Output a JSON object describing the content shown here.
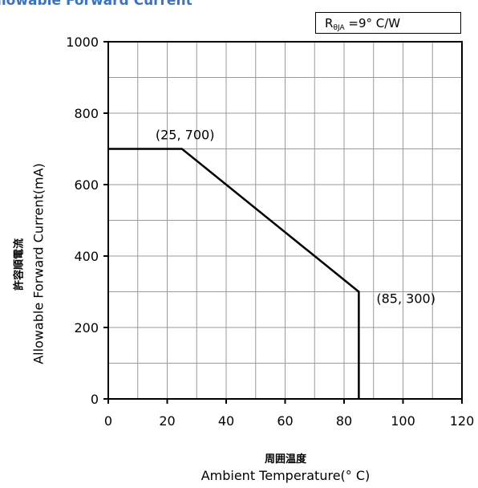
{
  "chart_data": {
    "type": "line",
    "title": "llowable Forward Current",
    "annotation_box": {
      "prefix": "R",
      "subscript": "θJA",
      "suffix": " =9° C/W"
    },
    "ylabel_jp": "許容順電流",
    "ylabel": "Allowable Forward Current(mA)",
    "xlabel_jp": "周囲温度",
    "xlabel": "Ambient Temperature(° C)",
    "xlim": [
      0,
      120
    ],
    "ylim": [
      0,
      1000
    ],
    "xticks": [
      0,
      20,
      40,
      60,
      80,
      100,
      120
    ],
    "yticks": [
      0,
      200,
      400,
      600,
      800,
      1000
    ],
    "grid": true,
    "series": [
      {
        "x": [
          0,
          25,
          85,
          85
        ],
        "y": [
          700,
          700,
          300,
          0
        ]
      }
    ],
    "annotations": [
      {
        "text": "(25, 700)",
        "x": 25,
        "y": 700
      },
      {
        "text": "(85, 300)",
        "x": 85,
        "y": 300
      }
    ]
  }
}
